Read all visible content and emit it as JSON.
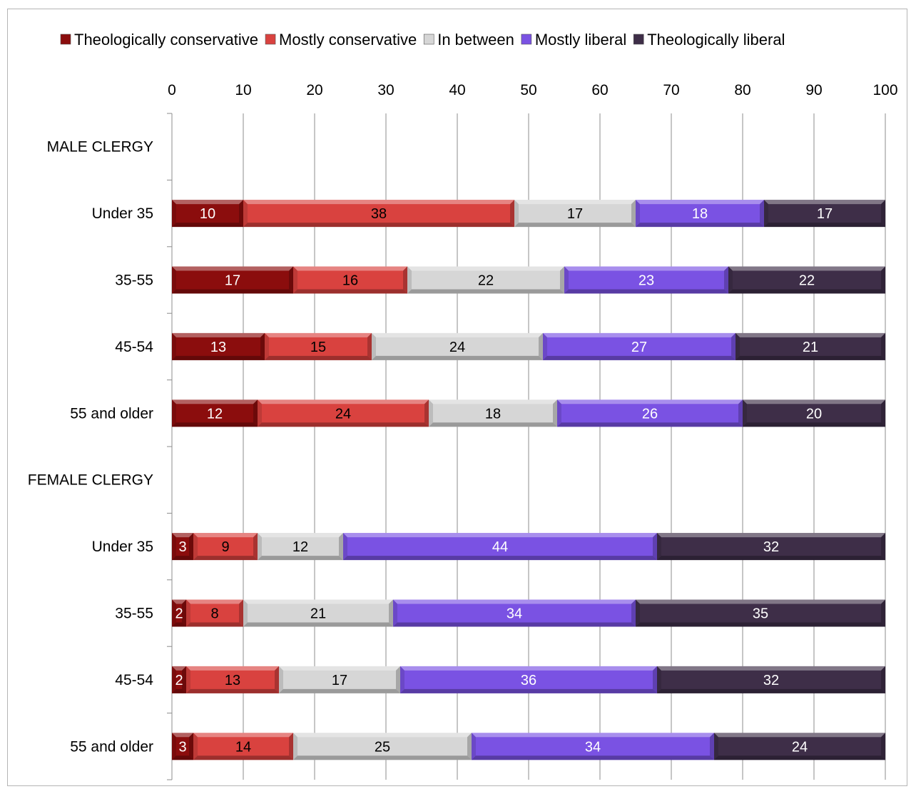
{
  "chart_data": {
    "type": "bar",
    "orientation": "horizontal",
    "stacked": true,
    "categories": [
      "MALE CLERGY",
      "Under 35",
      "35-55",
      "45-54",
      "55 and older",
      "FEMALE CLERGY",
      "Under 35",
      "35-55",
      "45-54",
      "55 and older"
    ],
    "series": [
      {
        "name": "Theologically conservative",
        "color": "#8B0D0D",
        "label_color": "#ffffff",
        "values": [
          null,
          10,
          17,
          13,
          12,
          null,
          3,
          2,
          2,
          3
        ]
      },
      {
        "name": "Mostly conservative",
        "color": "#D9423F",
        "label_color": "#000000",
        "values": [
          null,
          38,
          16,
          15,
          24,
          null,
          9,
          8,
          13,
          14
        ]
      },
      {
        "name": "In between",
        "color": "#D6D6D6",
        "label_color": "#000000",
        "values": [
          null,
          17,
          22,
          24,
          18,
          null,
          12,
          21,
          17,
          25
        ]
      },
      {
        "name": "Mostly liberal",
        "color": "#7A52E3",
        "label_color": "#ffffff",
        "values": [
          null,
          18,
          23,
          27,
          26,
          null,
          44,
          34,
          36,
          34
        ]
      },
      {
        "name": "Theologically liberal",
        "color": "#3E2E48",
        "label_color": "#ffffff",
        "values": [
          null,
          17,
          22,
          21,
          20,
          null,
          32,
          35,
          32,
          24
        ]
      }
    ],
    "xlim": [
      0,
      100
    ],
    "xticks": [
      0,
      10,
      20,
      30,
      40,
      50,
      60,
      70,
      80,
      90,
      100
    ],
    "x_axis_position": "top",
    "grid": "vertical",
    "legend": "top",
    "title": "",
    "xlabel": "",
    "ylabel": ""
  }
}
